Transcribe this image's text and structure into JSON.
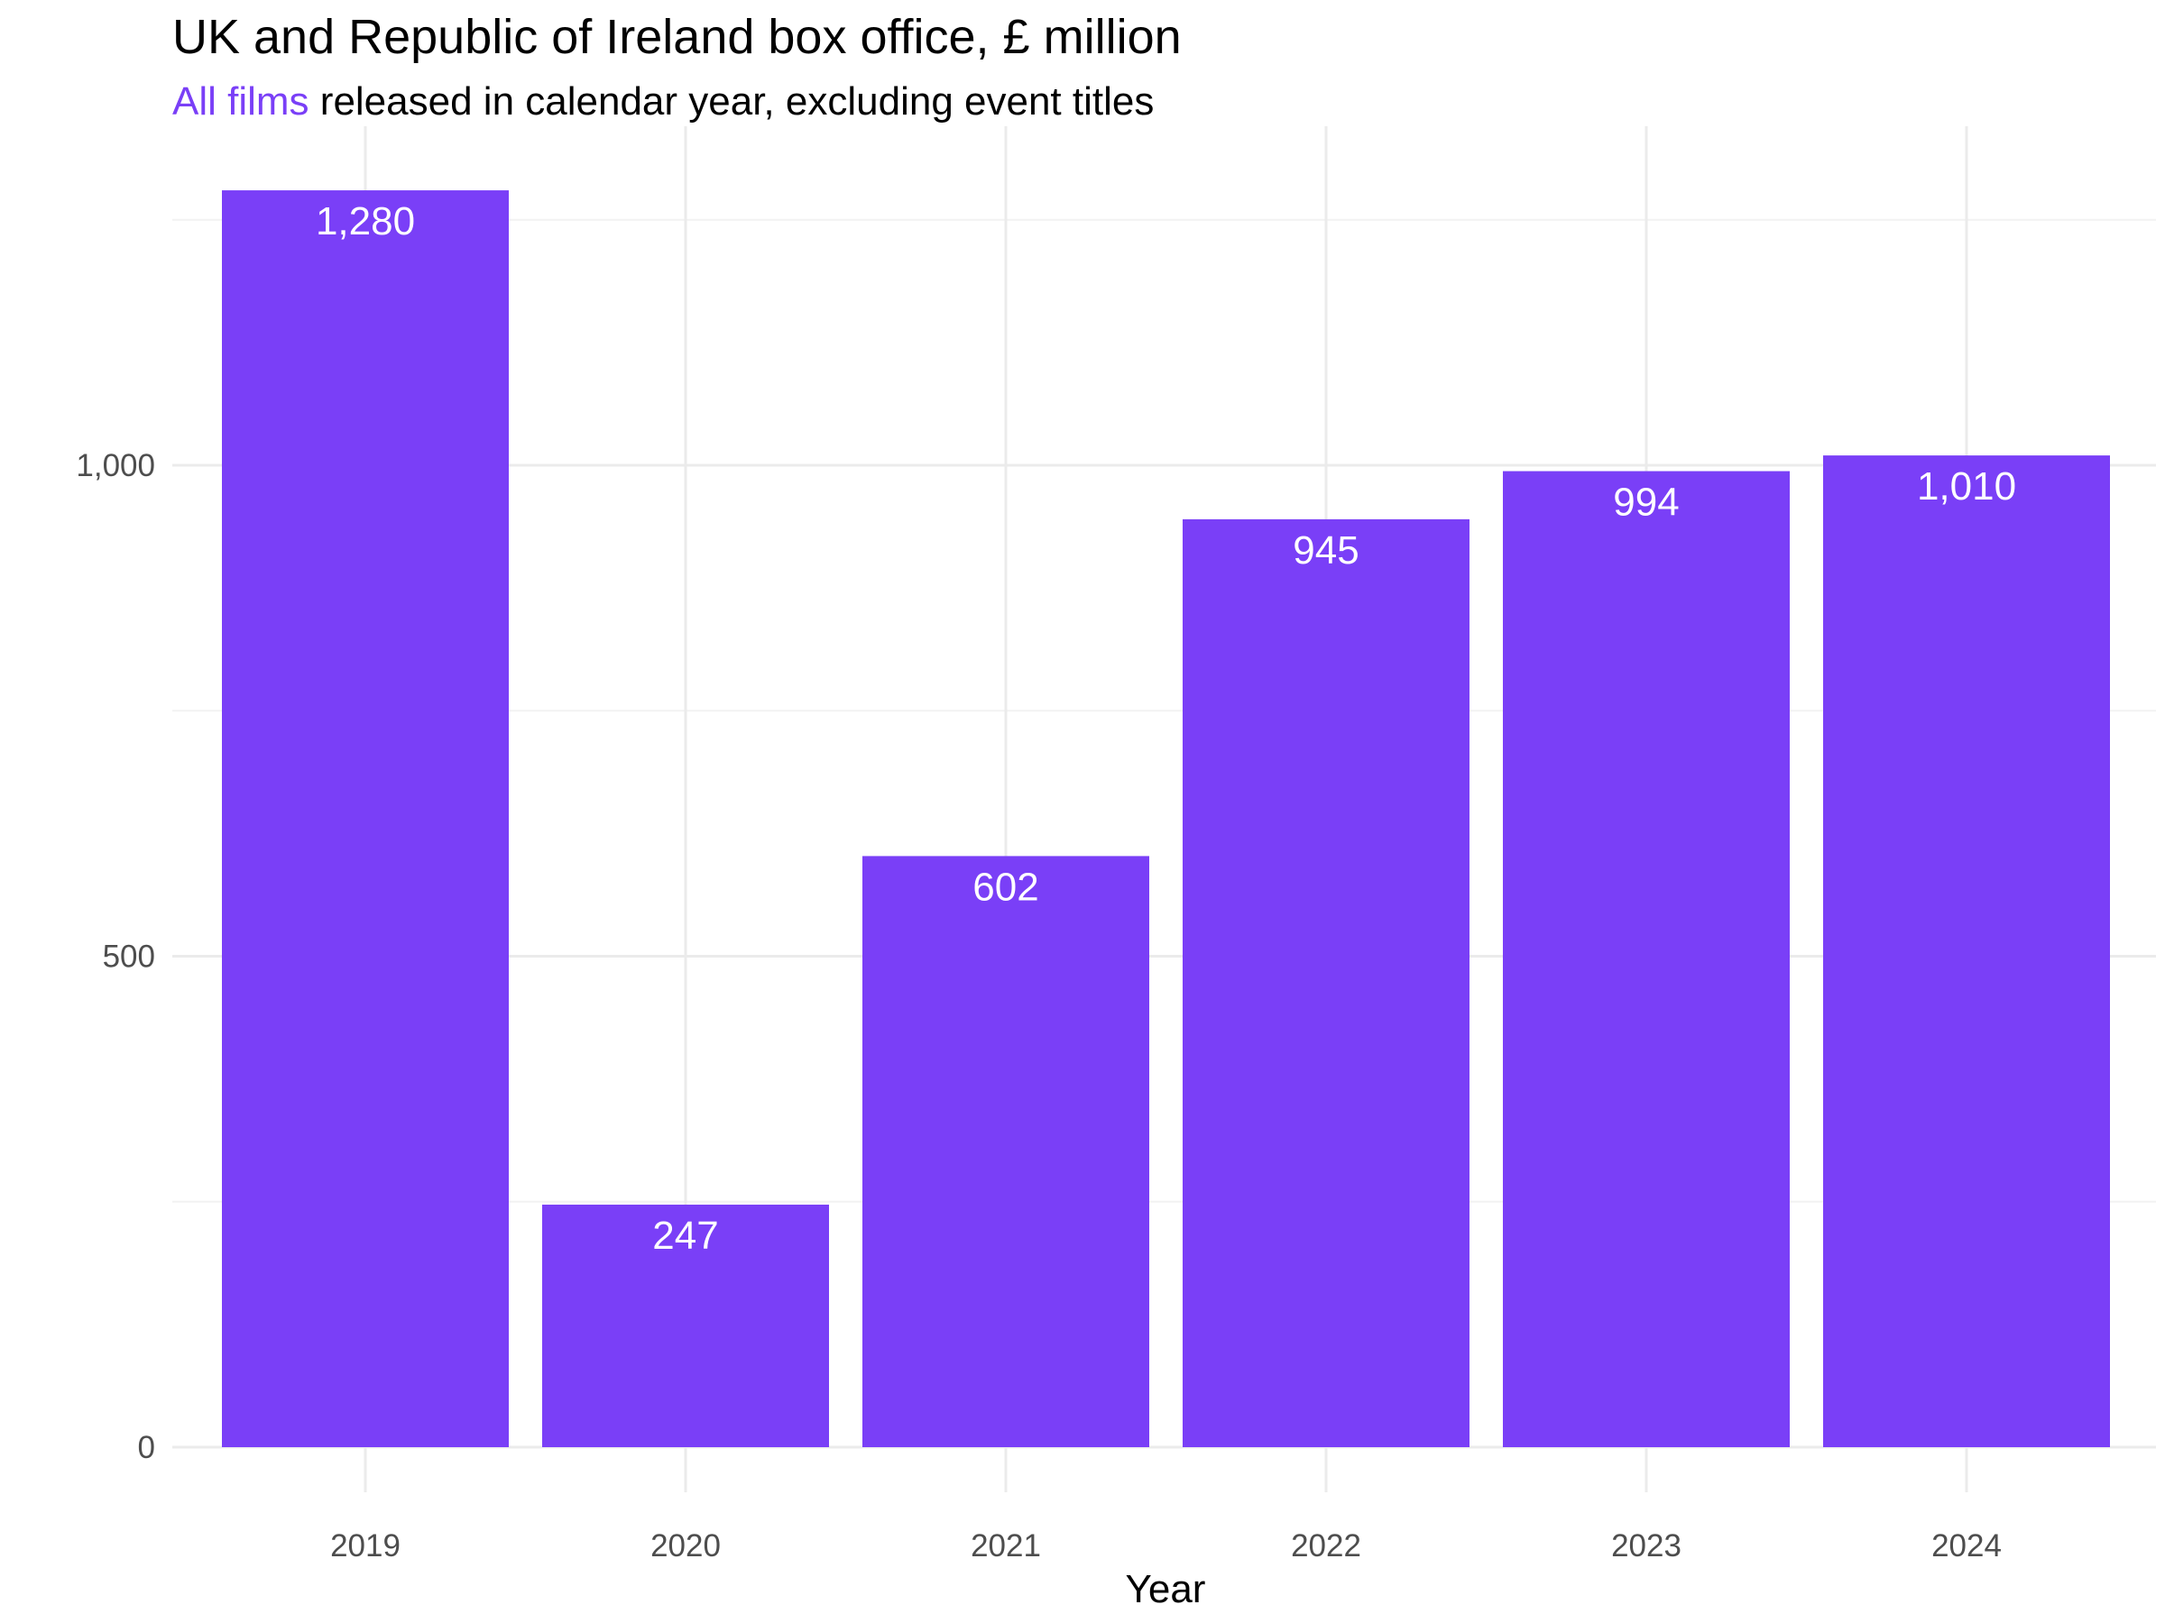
{
  "chart_data": {
    "type": "bar",
    "title": "UK and Republic of Ireland box office, £ million",
    "subtitle_highlight": "All films",
    "subtitle_rest": " released in calendar year, excluding event titles",
    "xlabel": "Year",
    "ylabel": "",
    "categories": [
      "2019",
      "2020",
      "2021",
      "2022",
      "2023",
      "2024"
    ],
    "values": [
      1280,
      247,
      602,
      945,
      994,
      1010
    ],
    "value_labels": [
      "1,280",
      "247",
      "602",
      "945",
      "994",
      "1,010"
    ],
    "yticks": [
      0,
      500,
      1000
    ],
    "ytick_labels": [
      "0",
      "500",
      "1,000"
    ],
    "ylim": [
      0,
      1330
    ],
    "grid": true,
    "legend": "none",
    "colors": {
      "bar": "#7a3ff7",
      "bar_label": "#ffffff",
      "grid": "#ebebeb",
      "tick": "#4d4d4d",
      "accent": "#7a3ff7"
    }
  }
}
